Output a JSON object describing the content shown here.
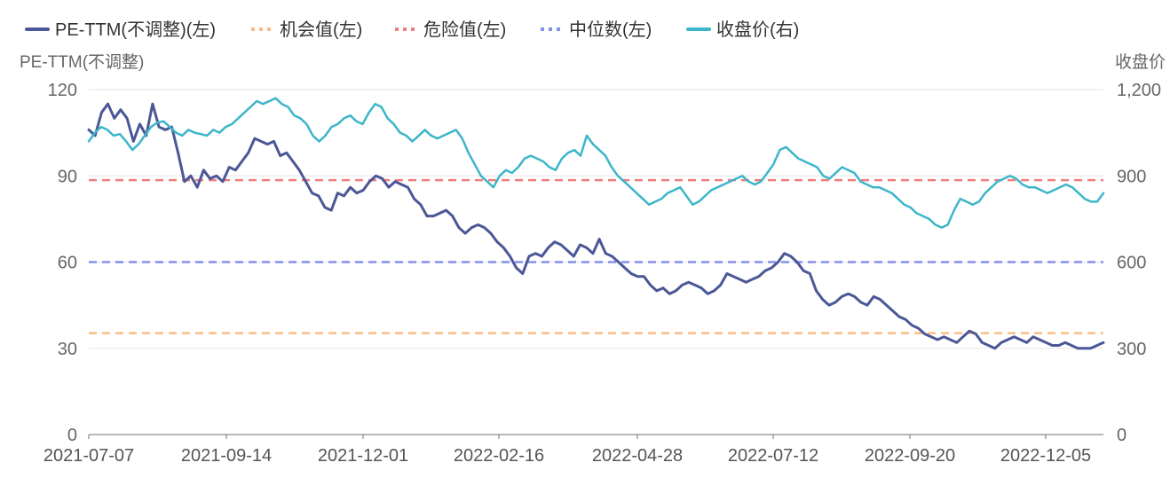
{
  "chart_data": {
    "type": "line",
    "legend": [
      {
        "name": "PE-TTM(不调整)(左)",
        "color": "#4b5796",
        "style": "solid"
      },
      {
        "name": "机会值(左)",
        "color": "#f8bd87",
        "style": "dotted"
      },
      {
        "name": "危险值(左)",
        "color": "#ef7e7e",
        "style": "dotted"
      },
      {
        "name": "中位数(左)",
        "color": "#8490ef",
        "style": "dotted"
      },
      {
        "name": "收盘价(右)",
        "color": "#3cb6c9",
        "style": "solid"
      }
    ],
    "y_left": {
      "label": "PE-TTM(不调整)",
      "min": 0,
      "max": 120,
      "ticks": [
        "0",
        "30",
        "60",
        "90",
        "120"
      ]
    },
    "y_right": {
      "label": "收盘价",
      "min": 0,
      "max": 1200,
      "ticks": [
        "0",
        "300",
        "600",
        "900",
        "1,200"
      ]
    },
    "x_ticks": [
      "2021-07-07",
      "2021-09-14",
      "2021-12-01",
      "2022-02-16",
      "2022-04-28",
      "2022-07-12",
      "2022-09-20",
      "2022-12-05"
    ],
    "reference_lines": [
      {
        "name": "机会值(左)",
        "value": 35.3,
        "color": "#f8bd87"
      },
      {
        "name": "危险值(左)",
        "value": 88.5,
        "color": "#ef7e7e"
      },
      {
        "name": "中位数(左)",
        "value": 60.0,
        "color": "#8490ef"
      }
    ],
    "series": [
      {
        "name": "PE-TTM(不调整)(左)",
        "axis": "left",
        "color": "#4b5796",
        "values": [
          106,
          104,
          112,
          115,
          110,
          113,
          110,
          102,
          108,
          104,
          115,
          107,
          106,
          107,
          98,
          88,
          90,
          86,
          92,
          89,
          90,
          88,
          93,
          92,
          95,
          98,
          103,
          102,
          101,
          102,
          97,
          98,
          95,
          92,
          88,
          84,
          83,
          79,
          78,
          84,
          83,
          86,
          84,
          85,
          88,
          90,
          89,
          86,
          88,
          87,
          86,
          82,
          80,
          76,
          76,
          77,
          78,
          76,
          72,
          70,
          72,
          73,
          72,
          70,
          67,
          65,
          62,
          58,
          56,
          62,
          63,
          62,
          65,
          67,
          66,
          64,
          62,
          66,
          65,
          63,
          68,
          63,
          62,
          60,
          58,
          56,
          55,
          55,
          52,
          50,
          51,
          49,
          50,
          52,
          53,
          52,
          51,
          49,
          50,
          52,
          56,
          55,
          54,
          53,
          54,
          55,
          57,
          58,
          60,
          63,
          62,
          60,
          57,
          56,
          50,
          47,
          45,
          46,
          48,
          49,
          48,
          46,
          45,
          48,
          47,
          45,
          43,
          41,
          40,
          38,
          37,
          35,
          34,
          33,
          34,
          33,
          32,
          34,
          36,
          35,
          32,
          31,
          30,
          32,
          33,
          34,
          33,
          32,
          34,
          33,
          32,
          31,
          31,
          32,
          31,
          30,
          30,
          30,
          31,
          32
        ]
      },
      {
        "name": "收盘价(右)",
        "axis": "right",
        "color": "#3cb6c9",
        "values": [
          1020,
          1050,
          1070,
          1060,
          1040,
          1045,
          1020,
          990,
          1010,
          1040,
          1070,
          1085,
          1090,
          1070,
          1050,
          1040,
          1060,
          1050,
          1045,
          1040,
          1060,
          1050,
          1070,
          1080,
          1100,
          1120,
          1140,
          1160,
          1150,
          1160,
          1170,
          1150,
          1140,
          1110,
          1100,
          1080,
          1040,
          1020,
          1040,
          1070,
          1080,
          1100,
          1110,
          1090,
          1080,
          1120,
          1150,
          1140,
          1100,
          1080,
          1050,
          1040,
          1020,
          1040,
          1060,
          1040,
          1030,
          1040,
          1050,
          1060,
          1030,
          980,
          940,
          900,
          880,
          860,
          900,
          920,
          910,
          930,
          960,
          970,
          960,
          950,
          930,
          920,
          960,
          980,
          990,
          970,
          1040,
          1010,
          990,
          970,
          930,
          900,
          880,
          860,
          840,
          820,
          800,
          810,
          820,
          840,
          850,
          860,
          830,
          800,
          810,
          830,
          850,
          860,
          870,
          880,
          890,
          900,
          880,
          870,
          880,
          910,
          940,
          990,
          1000,
          980,
          960,
          950,
          940,
          930,
          900,
          890,
          910,
          930,
          920,
          910,
          880,
          870,
          860,
          860,
          850,
          840,
          820,
          800,
          790,
          770,
          760,
          750,
          730,
          720,
          730,
          780,
          820,
          810,
          800,
          810,
          840,
          860,
          880,
          890,
          900,
          890,
          870,
          860,
          860,
          850,
          840,
          850,
          860,
          870,
          860,
          840,
          820,
          810,
          810,
          840
        ]
      }
    ]
  }
}
